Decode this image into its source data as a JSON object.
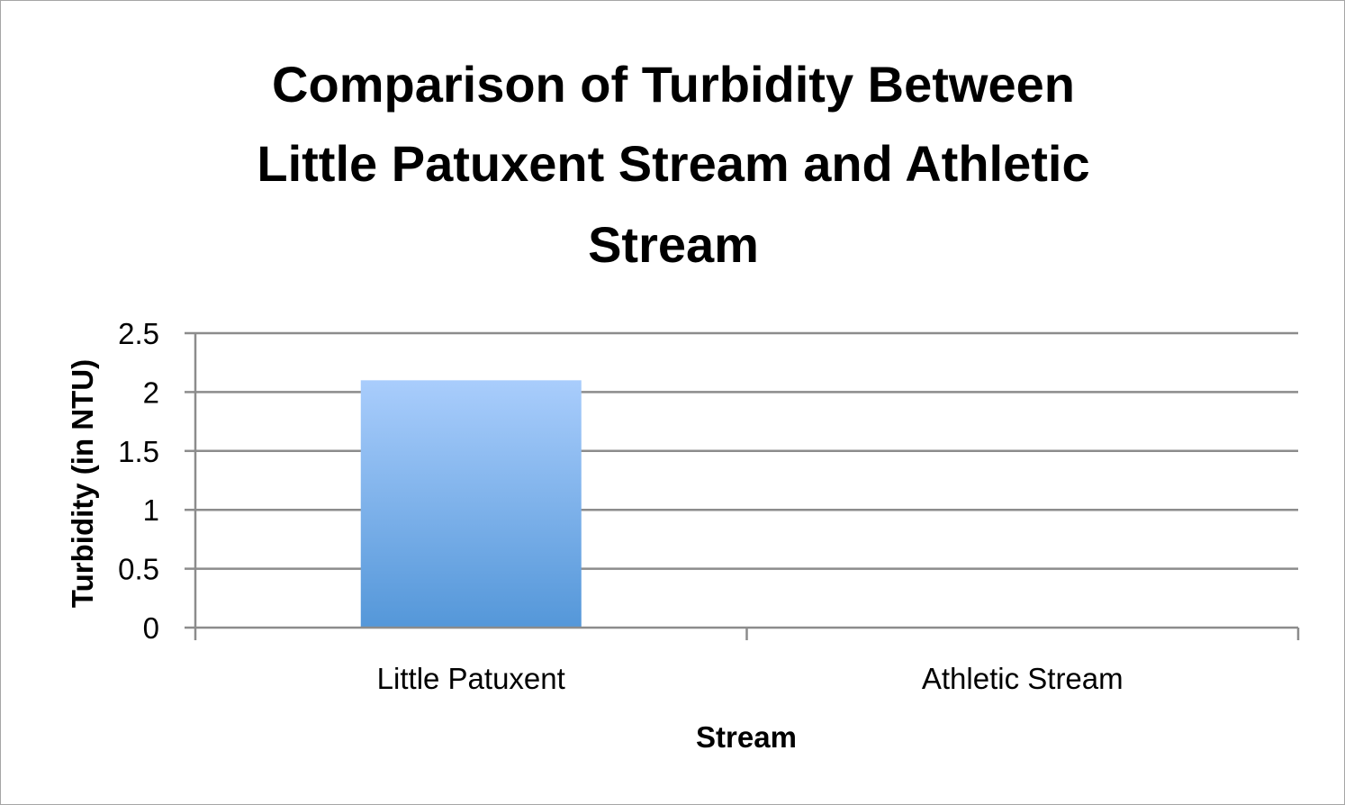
{
  "chart_data": {
    "type": "bar",
    "title_lines": [
      "Comparison of Turbidity Between",
      "Little Patuxent Stream and Athletic",
      "Stream"
    ],
    "xlabel": "Stream",
    "ylabel": "Turbidity (in NTU)",
    "categories": [
      "Little Patuxent",
      "Athletic Stream"
    ],
    "values": [
      2.1,
      0
    ],
    "ylim": [
      0,
      2.5
    ],
    "yticks": [
      "0",
      "0.5",
      "1",
      "1.5",
      "2",
      "2.5"
    ],
    "grid": true,
    "legend": "none",
    "colors": {
      "bar_top": "#a9cdfc",
      "bar_bottom": "#5497d9",
      "grid": "#8c8c8c"
    }
  }
}
